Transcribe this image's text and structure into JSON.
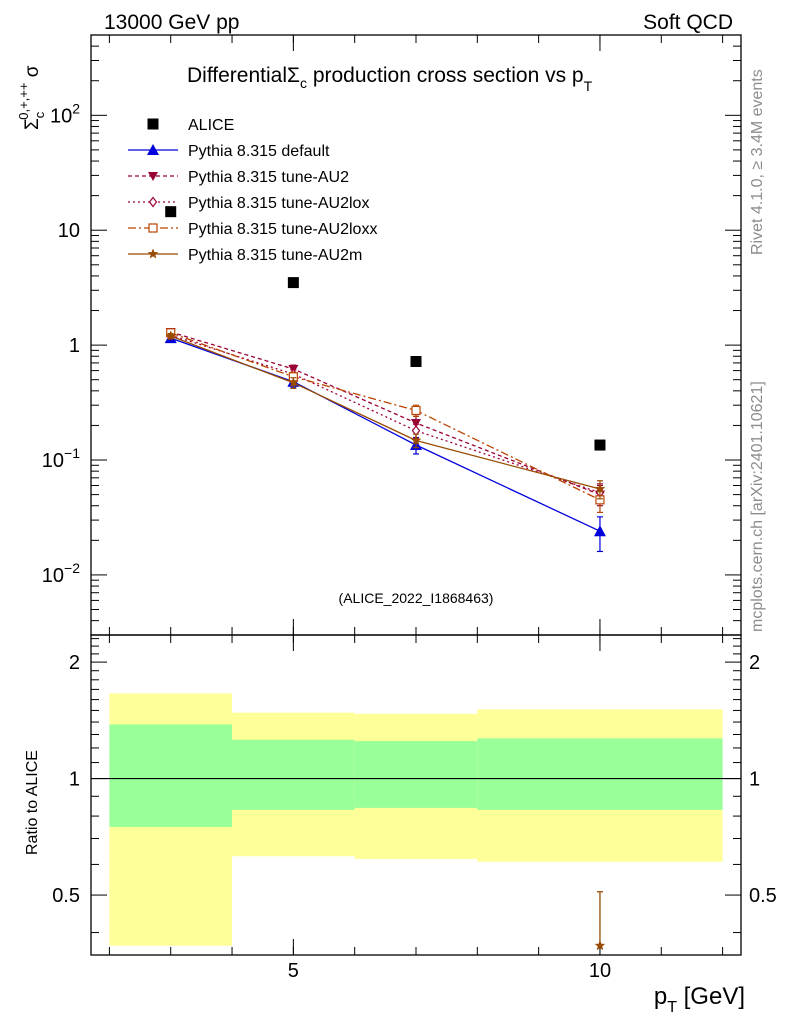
{
  "header": {
    "left": "13000 GeV pp",
    "right": "Soft QCD"
  },
  "side_labels": {
    "rivet": "Rivet 4.1.0, ≥ 3.4M events",
    "mcplots": "mcplots.cern.ch [arXiv:2401.10621]"
  },
  "colors": {
    "alice": "#000000",
    "default": "#0000dd",
    "au2": "#990033",
    "au2lox": "#a0003c",
    "au2loxx": "#bb4400",
    "au2m": "#994c00",
    "band_inner": "#99ff99",
    "band_outer": "#ffff99",
    "watermark": "#999999"
  },
  "chart_data": {
    "type": "line",
    "title": {
      "main": "Differential",
      "sigma": "Σ",
      "sub": "c",
      "rest": " production cross section vs p",
      "rest_sub": "T"
    },
    "ylabel": {
      "s1": "Σ",
      "sub": "c",
      "sup": "0,+,++",
      "s2": " σ"
    },
    "xlabel": "p_T [GeV]",
    "xlabel_main": "p",
    "xlabel_sub": "T",
    "xlabel_rest": " [GeV]",
    "ratio_ylabel": "Ratio to ALICE",
    "watermark": "(ALICE_2022_I1868463)",
    "xlim": [
      1.7,
      12.3
    ],
    "ylim": [
      0.003,
      500
    ],
    "ratio_ylim": [
      0.35,
      2.35
    ],
    "x_ticks": [
      5,
      10
    ],
    "x_tick_labels": [
      "5",
      "10"
    ],
    "y_tick_labels": [
      {
        "base": "10",
        "exp": "2",
        "value": 100
      },
      {
        "base": "10",
        "exp": "",
        "value": 10
      },
      {
        "base": "1",
        "exp": "",
        "value": 1
      },
      {
        "base": "10",
        "exp": "−1",
        "value": 0.1
      },
      {
        "base": "10",
        "exp": "−2",
        "value": 0.01
      }
    ],
    "ratio_y_ticks": [
      0.5,
      1,
      2
    ],
    "ratio_y_tick_labels": [
      "0.5",
      "1",
      "2"
    ],
    "bins": [
      [
        2,
        4
      ],
      [
        4,
        6
      ],
      [
        6,
        8
      ],
      [
        8,
        12
      ]
    ],
    "x": [
      3,
      5,
      7,
      10
    ],
    "band_inner": [
      [
        0.75,
        1.38
      ],
      [
        0.83,
        1.26
      ],
      [
        0.84,
        1.25
      ],
      [
        0.83,
        1.27
      ]
    ],
    "band_outer": [
      [
        0.37,
        1.66
      ],
      [
        0.63,
        1.48
      ],
      [
        0.62,
        1.47
      ],
      [
        0.61,
        1.51
      ]
    ],
    "series": [
      {
        "name": "ALICE",
        "key": "alice",
        "values": [
          14.5,
          3.5,
          0.72,
          0.135
        ],
        "errors": [
          0,
          0,
          0,
          0
        ],
        "marker": "square",
        "dash": "none"
      },
      {
        "name": "Pythia 8.315 default",
        "key": "default",
        "values": [
          1.15,
          0.48,
          0.135,
          0.024
        ],
        "errors": [
          0.06,
          0.05,
          0.022,
          0.008
        ],
        "marker": "triangle",
        "dash": "solid"
      },
      {
        "name": "Pythia 8.315 tune-AU2",
        "key": "au2",
        "values": [
          1.3,
          0.62,
          0.21,
          0.05
        ],
        "errors": [
          0.06,
          0.05,
          0.03,
          0.01
        ],
        "marker": "triangle-down",
        "dash": "4,3"
      },
      {
        "name": "Pythia 8.315 tune-AU2lox",
        "key": "au2lox",
        "values": [
          1.22,
          0.56,
          0.18,
          0.052
        ],
        "errors": [
          0.06,
          0.05,
          0.025,
          0.01
        ],
        "marker": "diamond",
        "dash": "2,3"
      },
      {
        "name": "Pythia 8.315 tune-AU2loxx",
        "key": "au2loxx",
        "values": [
          1.28,
          0.53,
          0.27,
          0.045
        ],
        "errors": [
          0.06,
          0.05,
          0.03,
          0.01
        ],
        "marker": "open-square",
        "dash": "8,3,2,3"
      },
      {
        "name": "Pythia 8.315 tune-AU2m",
        "key": "au2m",
        "values": [
          1.2,
          0.47,
          0.148,
          0.056
        ],
        "errors": [
          0.06,
          0.05,
          0.02,
          0.01
        ],
        "marker": "star",
        "dash": "solid"
      }
    ],
    "ratio_points": [
      {
        "key": "au2m",
        "x": 10,
        "value": 0.37,
        "error_up": 0.14
      }
    ]
  }
}
